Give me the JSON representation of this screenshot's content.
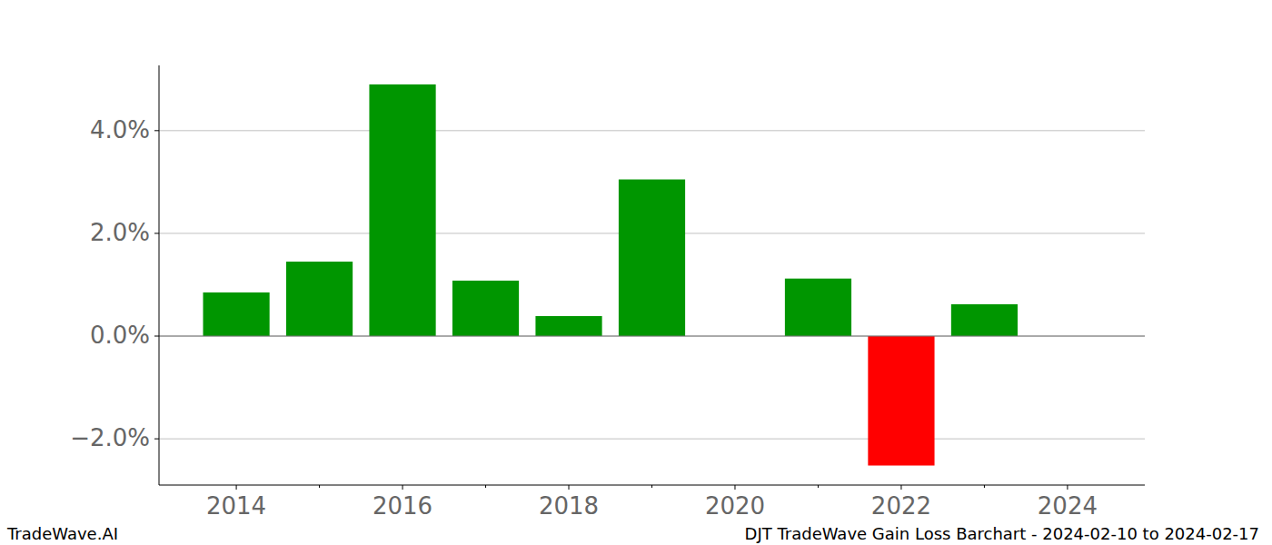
{
  "chart_data": {
    "type": "bar",
    "title": "DJT TradeWave Gain Loss Barchart - 2024-02-10 to 2024-02-17",
    "source": "TradeWave.AI",
    "x": [
      2014,
      2015,
      2016,
      2017,
      2018,
      2019,
      2020,
      2021,
      2022,
      2023
    ],
    "values": [
      0.85,
      1.45,
      4.9,
      1.08,
      0.39,
      3.05,
      0,
      1.12,
      -2.52,
      0.62
    ],
    "colors": [
      "#009600",
      "#009600",
      "#009600",
      "#009600",
      "#009600",
      "#009600",
      "#009600",
      "#009600",
      "#ff0000",
      "#009600"
    ],
    "xlim": [
      2013.07,
      2024.93
    ],
    "xticks": [
      2014,
      2016,
      2018,
      2020,
      2022,
      2024
    ],
    "ylim": [
      -2.9,
      5.27
    ],
    "yticks": [
      {
        "value": -2,
        "label": "−2.0%"
      },
      {
        "value": 0,
        "label": "0.0%"
      },
      {
        "value": 2,
        "label": "2.0%"
      },
      {
        "value": 4,
        "label": "4.0%"
      }
    ],
    "grid": true
  }
}
